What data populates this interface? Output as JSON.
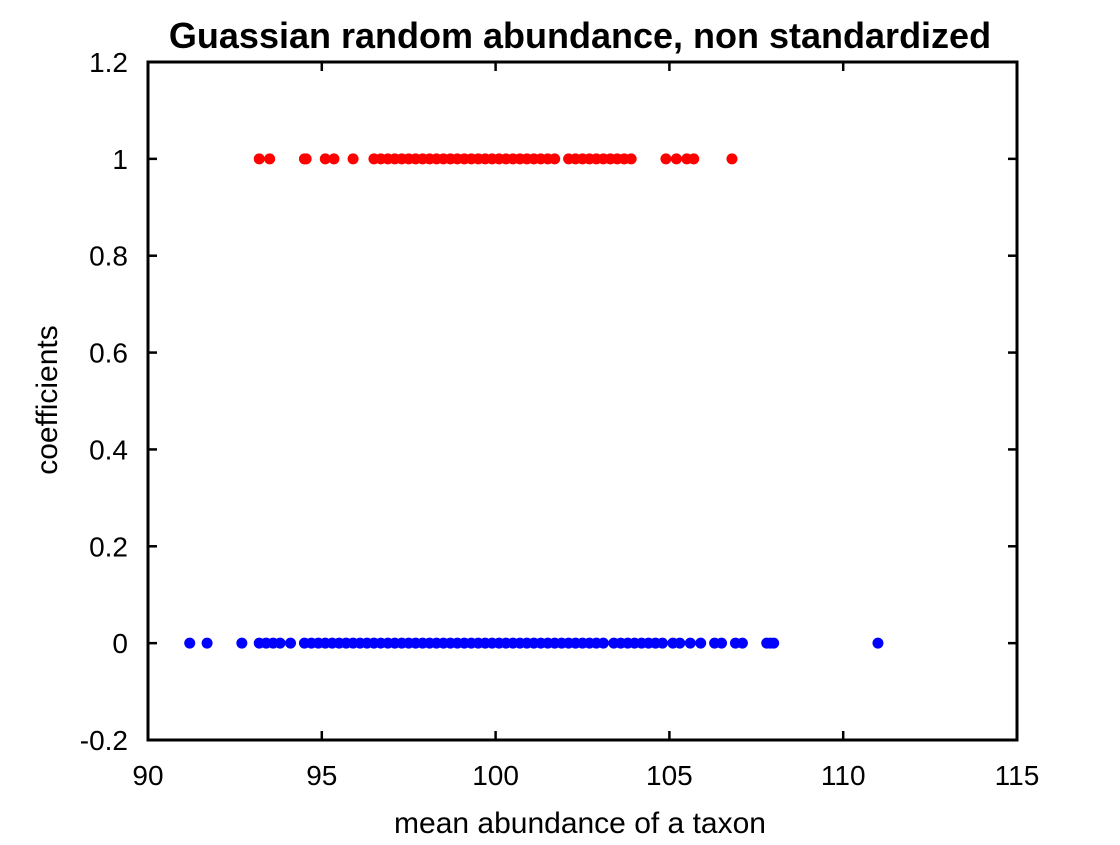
{
  "chart_data": {
    "type": "scatter",
    "title": "Guassian random abundance, non standardized",
    "xlabel": "mean abundance of a taxon",
    "ylabel": "coefficients",
    "xlim": [
      90,
      115
    ],
    "ylim": [
      -0.2,
      1.2
    ],
    "xticks": [
      90,
      95,
      100,
      105,
      110,
      115
    ],
    "yticks": [
      -0.2,
      0,
      0.2,
      0.4,
      0.6,
      0.8,
      1,
      1.2
    ],
    "xtick_labels": [
      "90",
      "95",
      "100",
      "105",
      "110",
      "115"
    ],
    "ytick_labels": [
      "-0.2",
      "0",
      "0.2",
      "0.4",
      "0.6",
      "0.8",
      "1",
      "1.2"
    ],
    "grid": false,
    "box": true,
    "series": [
      {
        "color": "#ff0000",
        "x": [
          93.2,
          93.5,
          94.5,
          94.55,
          95.1,
          95.35,
          95.9,
          96.5,
          96.7,
          96.9,
          97.1,
          97.3,
          97.5,
          97.7,
          97.9,
          98.1,
          98.3,
          98.5,
          98.7,
          98.9,
          99.1,
          99.3,
          99.5,
          99.7,
          99.9,
          100.1,
          100.3,
          100.5,
          100.7,
          100.9,
          101.1,
          101.3,
          101.5,
          101.7,
          102.1,
          102.3,
          102.5,
          102.7,
          102.9,
          103.1,
          103.3,
          103.5,
          103.7,
          103.9,
          104.9,
          105.2,
          105.5,
          105.7,
          106.8
        ],
        "y": [
          1,
          1,
          1,
          1,
          1,
          1,
          1,
          1,
          1,
          1,
          1,
          1,
          1,
          1,
          1,
          1,
          1,
          1,
          1,
          1,
          1,
          1,
          1,
          1,
          1,
          1,
          1,
          1,
          1,
          1,
          1,
          1,
          1,
          1,
          1,
          1,
          1,
          1,
          1,
          1,
          1,
          1,
          1,
          1,
          1,
          1,
          1,
          1,
          1
        ]
      },
      {
        "color": "#0000ff",
        "x": [
          91.2,
          91.7,
          92.7,
          93.2,
          93.4,
          93.6,
          93.8,
          94.1,
          94.5,
          94.7,
          94.9,
          95.1,
          95.3,
          95.5,
          95.7,
          95.9,
          96.1,
          96.3,
          96.5,
          96.7,
          96.9,
          97.1,
          97.3,
          97.5,
          97.7,
          97.9,
          98.1,
          98.3,
          98.5,
          98.7,
          98.9,
          99.1,
          99.3,
          99.5,
          99.7,
          99.9,
          100.1,
          100.3,
          100.5,
          100.7,
          100.9,
          101.1,
          101.3,
          101.5,
          101.7,
          101.9,
          102.1,
          102.3,
          102.5,
          102.7,
          102.9,
          103.1,
          103.4,
          103.6,
          103.8,
          104.0,
          104.2,
          104.4,
          104.6,
          104.8,
          105.1,
          105.3,
          105.6,
          105.9,
          106.3,
          106.5,
          106.9,
          107.1,
          107.8,
          107.9,
          108.0,
          111.0
        ],
        "y": [
          0,
          0,
          0,
          0,
          0,
          0,
          0,
          0,
          0,
          0,
          0,
          0,
          0,
          0,
          0,
          0,
          0,
          0,
          0,
          0,
          0,
          0,
          0,
          0,
          0,
          0,
          0,
          0,
          0,
          0,
          0,
          0,
          0,
          0,
          0,
          0,
          0,
          0,
          0,
          0,
          0,
          0,
          0,
          0,
          0,
          0,
          0,
          0,
          0,
          0,
          0,
          0,
          0,
          0,
          0,
          0,
          0,
          0,
          0,
          0,
          0,
          0,
          0,
          0,
          0,
          0,
          0,
          0,
          0,
          0,
          0,
          0
        ]
      }
    ]
  }
}
